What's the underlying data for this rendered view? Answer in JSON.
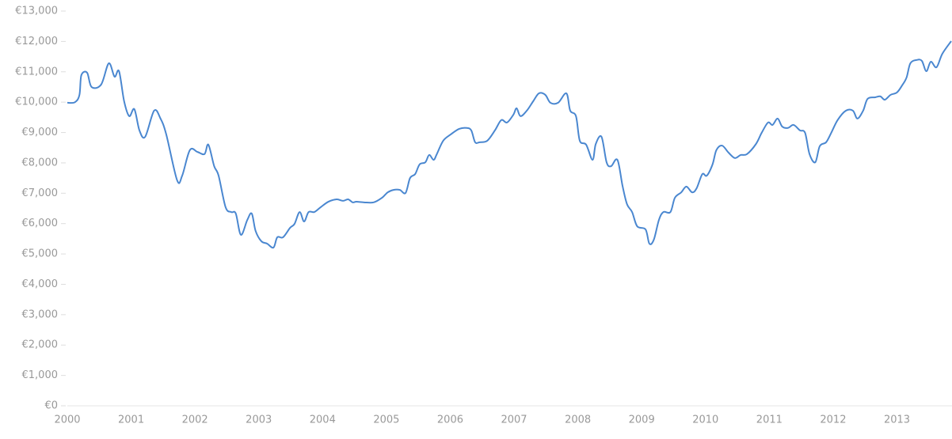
{
  "chart_data": {
    "type": "line",
    "color": "#4a87d0",
    "x": [
      2000.0,
      2000.12,
      2000.19,
      2000.22,
      2000.31,
      2000.38,
      2000.53,
      2000.65,
      2000.74,
      2000.81,
      2000.89,
      2000.97,
      2001.05,
      2001.13,
      2001.22,
      2001.36,
      2001.46,
      2001.55,
      2001.72,
      2001.8,
      2001.92,
      2002.04,
      2002.15,
      2002.21,
      2002.3,
      2002.37,
      2002.48,
      2002.57,
      2002.64,
      2002.72,
      2002.82,
      2002.89,
      2002.95,
      2003.04,
      2003.13,
      2003.23,
      2003.29,
      2003.38,
      2003.49,
      2003.56,
      2003.64,
      2003.71,
      2003.78,
      2003.87,
      2003.97,
      2004.09,
      2004.22,
      2004.32,
      2004.4,
      2004.47,
      2004.53,
      2004.65,
      2004.8,
      2004.93,
      2005.02,
      2005.11,
      2005.21,
      2005.3,
      2005.37,
      2005.45,
      2005.52,
      2005.61,
      2005.67,
      2005.74,
      2005.79,
      2005.89,
      2006.01,
      2006.14,
      2006.26,
      2006.33,
      2006.39,
      2006.46,
      2006.58,
      2006.7,
      2006.8,
      2006.89,
      2006.99,
      2007.04,
      2007.1,
      2007.2,
      2007.3,
      2007.39,
      2007.49,
      2007.57,
      2007.69,
      2007.82,
      2007.88,
      2007.97,
      2008.03,
      2008.13,
      2008.23,
      2008.28,
      2008.37,
      2008.45,
      2008.52,
      2008.62,
      2008.7,
      2008.77,
      2008.85,
      2008.93,
      2009.06,
      2009.12,
      2009.19,
      2009.27,
      2009.34,
      2009.45,
      2009.52,
      2009.62,
      2009.7,
      2009.79,
      2009.86,
      2009.95,
      2010.02,
      2010.11,
      2010.17,
      2010.26,
      2010.36,
      2010.46,
      2010.55,
      2010.65,
      2010.79,
      2010.88,
      2010.98,
      2011.05,
      2011.13,
      2011.2,
      2011.29,
      2011.38,
      2011.48,
      2011.56,
      2011.63,
      2011.72,
      2011.79,
      2011.89,
      2011.97,
      2012.07,
      2012.2,
      2012.31,
      2012.38,
      2012.47,
      2012.54,
      2012.66,
      2012.74,
      2012.81,
      2012.9,
      2013.0,
      2013.08,
      2013.15,
      2013.21,
      2013.31,
      2013.39,
      2013.46,
      2013.53,
      2013.62,
      2013.71,
      2013.85
    ],
    "values": [
      9980,
      10000,
      10240,
      10890,
      10970,
      10500,
      10580,
      11280,
      10840,
      11020,
      10030,
      9540,
      9770,
      9070,
      8860,
      9720,
      9460,
      8940,
      7430,
      7580,
      8420,
      8360,
      8290,
      8600,
      7900,
      7580,
      6540,
      6380,
      6330,
      5630,
      6120,
      6330,
      5760,
      5420,
      5340,
      5210,
      5550,
      5550,
      5860,
      5990,
      6380,
      6070,
      6380,
      6380,
      6540,
      6720,
      6800,
      6750,
      6800,
      6700,
      6720,
      6700,
      6700,
      6850,
      7030,
      7110,
      7110,
      7010,
      7500,
      7630,
      7950,
      8020,
      8260,
      8100,
      8290,
      8730,
      8940,
      9120,
      9150,
      9070,
      8680,
      8680,
      8730,
      9070,
      9410,
      9330,
      9590,
      9800,
      9540,
      9720,
      10030,
      10290,
      10240,
      9980,
      9980,
      10290,
      9720,
      9540,
      8730,
      8600,
      8100,
      8620,
      8860,
      8020,
      7890,
      8100,
      7240,
      6640,
      6380,
      5910,
      5810,
      5340,
      5470,
      6120,
      6380,
      6380,
      6850,
      7030,
      7220,
      7030,
      7160,
      7630,
      7580,
      7950,
      8420,
      8570,
      8340,
      8160,
      8260,
      8290,
      8620,
      8990,
      9330,
      9250,
      9460,
      9200,
      9150,
      9250,
      9070,
      8990,
      8290,
      8020,
      8550,
      8680,
      8990,
      9410,
      9720,
      9720,
      9460,
      9720,
      10110,
      10160,
      10190,
      10080,
      10240,
      10320,
      10550,
      10810,
      11280,
      11390,
      11360,
      11020,
      11330,
      11150,
      11590,
      12010
    ],
    "xlim": [
      2000,
      2013.85
    ],
    "xticks": [
      2000,
      2001,
      2002,
      2003,
      2004,
      2005,
      2006,
      2007,
      2008,
      2009,
      2010,
      2011,
      2012,
      2013
    ],
    "ylim": [
      0,
      13000
    ],
    "yticks": [
      {
        "value": 0,
        "label": "€0"
      },
      {
        "value": 1000,
        "label": "€1,000"
      },
      {
        "value": 2000,
        "label": "€2,000"
      },
      {
        "value": 3000,
        "label": "€3,000"
      },
      {
        "value": 4000,
        "label": "€4,000"
      },
      {
        "value": 5000,
        "label": "€5,000"
      },
      {
        "value": 6000,
        "label": "€6,000"
      },
      {
        "value": 7000,
        "label": "€7,000"
      },
      {
        "value": 8000,
        "label": "€8,000"
      },
      {
        "value": 9000,
        "label": "€9,000"
      },
      {
        "value": 10000,
        "label": "€10,000"
      },
      {
        "value": 11000,
        "label": "€11,000"
      },
      {
        "value": 12000,
        "label": "€12,000"
      },
      {
        "value": 13000,
        "label": "€13,000"
      }
    ]
  }
}
